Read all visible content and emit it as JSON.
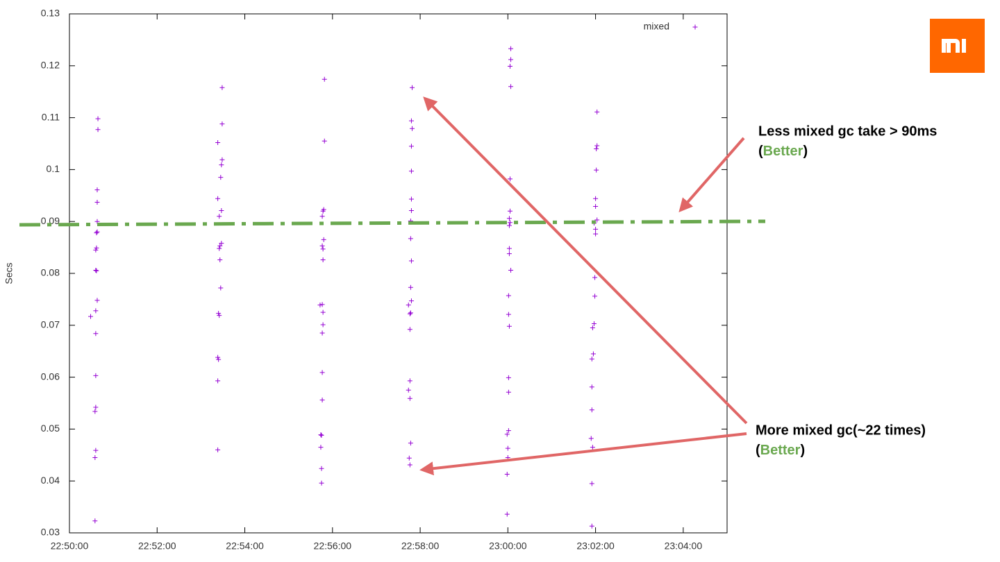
{
  "chart_data": {
    "type": "scatter",
    "y_label": "Secs",
    "xlim": [
      "22:50:00",
      "23:05:00"
    ],
    "xticks": [
      "22:50:00",
      "22:52:00",
      "22:54:00",
      "22:56:00",
      "22:58:00",
      "23:00:00",
      "23:02:00",
      "23:04:00"
    ],
    "ylim": [
      0.03,
      0.13
    ],
    "yticks": [
      0.03,
      0.04,
      0.05,
      0.06,
      0.07,
      0.08,
      0.09,
      0.1,
      0.11,
      0.12,
      0.13
    ],
    "legend": "top-right",
    "series": [
      {
        "name": "mixed",
        "color": "#9400d3",
        "x": [
          "22:50:39",
          "22:50:39",
          "22:50:38",
          "22:50:38",
          "22:50:38",
          "22:50:38",
          "22:50:37",
          "22:50:37",
          "22:50:36",
          "22:50:36",
          "22:50:37",
          "22:50:38",
          "22:50:36",
          "22:50:29",
          "22:50:36",
          "22:50:36",
          "22:50:36",
          "22:50:35",
          "22:50:36",
          "22:50:35",
          "22:50:35",
          "22:53:29",
          "22:53:29",
          "22:53:23",
          "22:53:29",
          "22:53:28",
          "22:53:27",
          "22:53:23",
          "22:53:28",
          "22:53:25",
          "22:53:28",
          "22:53:26",
          "22:53:25",
          "22:53:26",
          "22:53:27",
          "22:53:24",
          "22:53:25",
          "22:53:23",
          "22:53:24",
          "22:53:23",
          "22:53:23",
          "22:55:49",
          "22:55:49",
          "22:55:48",
          "22:55:47",
          "22:55:46",
          "22:55:48",
          "22:55:46",
          "22:55:47",
          "22:55:47",
          "22:55:43",
          "22:55:46",
          "22:55:47",
          "22:55:47",
          "22:55:46",
          "22:55:46",
          "22:55:46",
          "22:55:44",
          "22:55:45",
          "22:55:44",
          "22:55:45",
          "22:55:45",
          "22:57:49",
          "22:57:48",
          "22:57:49",
          "22:57:48",
          "22:57:48",
          "22:57:48",
          "22:57:48",
          "22:57:47",
          "22:57:47",
          "22:57:48",
          "22:57:47",
          "22:57:48",
          "22:57:44",
          "22:57:47",
          "22:57:46",
          "22:57:46",
          "22:57:46",
          "22:57:44",
          "22:57:46",
          "22:57:47",
          "22:57:45",
          "22:57:46",
          "23:00:04",
          "23:00:04",
          "23:00:03",
          "23:00:04",
          "23:00:03",
          "23:00:03",
          "23:00:02",
          "23:00:03",
          "23:00:02",
          "23:00:02",
          "23:00:02",
          "23:00:04",
          "23:00:01",
          "23:00:01",
          "23:00:02",
          "23:00:01",
          "23:00:01",
          "23:00:01",
          "22:59:59",
          "23:00:00",
          "23:00:00",
          "22:59:59",
          "22:59:59",
          "23:02:02",
          "23:02:02",
          "23:02:01",
          "23:02:01",
          "23:02:00",
          "23:02:00",
          "23:02:02",
          "23:01:58",
          "23:02:00",
          "23:02:00",
          "23:01:59",
          "23:01:59",
          "23:01:58",
          "23:01:56",
          "23:01:57",
          "23:01:55",
          "23:01:55",
          "23:01:55",
          "23:01:54",
          "23:01:56",
          "23:01:55",
          "23:01:55"
        ],
        "values": [
          0.1098,
          0.1077,
          0.0961,
          0.0937,
          0.09,
          0.088,
          0.0878,
          0.0849,
          0.0845,
          0.0806,
          0.0805,
          0.0748,
          0.0728,
          0.0717,
          0.0684,
          0.0603,
          0.0542,
          0.0534,
          0.0459,
          0.0445,
          0.0323,
          0.1158,
          0.1088,
          0.1052,
          0.1019,
          0.1009,
          0.0985,
          0.0944,
          0.0921,
          0.091,
          0.0858,
          0.0853,
          0.0848,
          0.0826,
          0.0772,
          0.0723,
          0.0719,
          0.0638,
          0.0634,
          0.0593,
          0.046,
          0.1174,
          0.1055,
          0.0923,
          0.092,
          0.091,
          0.0865,
          0.0853,
          0.0847,
          0.0826,
          0.0739,
          0.074,
          0.0725,
          0.0701,
          0.0685,
          0.0609,
          0.0556,
          0.0489,
          0.0488,
          0.0465,
          0.0424,
          0.0396,
          0.1158,
          0.1094,
          0.1079,
          0.1045,
          0.0997,
          0.0943,
          0.0921,
          0.0901,
          0.0867,
          0.0824,
          0.0773,
          0.0747,
          0.0739,
          0.0724,
          0.0722,
          0.0692,
          0.0593,
          0.0575,
          0.0559,
          0.0473,
          0.0444,
          0.0431,
          0.1233,
          0.1212,
          0.1199,
          0.116,
          0.0982,
          0.092,
          0.0906,
          0.0898,
          0.0892,
          0.0848,
          0.0838,
          0.0806,
          0.0757,
          0.0721,
          0.0698,
          0.0599,
          0.0571,
          0.0497,
          0.049,
          0.0463,
          0.0445,
          0.0413,
          0.0336,
          0.1111,
          0.1046,
          0.104,
          0.0999,
          0.0944,
          0.0929,
          0.0903,
          0.0897,
          0.0885,
          0.0876,
          0.0792,
          0.0756,
          0.0703,
          0.0695,
          0.0645,
          0.0635,
          0.0581,
          0.0537,
          0.0482,
          0.0465,
          0.0395,
          0.0313
        ]
      }
    ],
    "annotations": [
      {
        "line1": "Less mixed gc take > 90ms",
        "open": "(",
        "highlight": "Better",
        "close": ")"
      },
      {
        "line1": "More mixed gc(~22 times)",
        "open": "(",
        "highlight": "Better",
        "close": ")"
      }
    ]
  }
}
